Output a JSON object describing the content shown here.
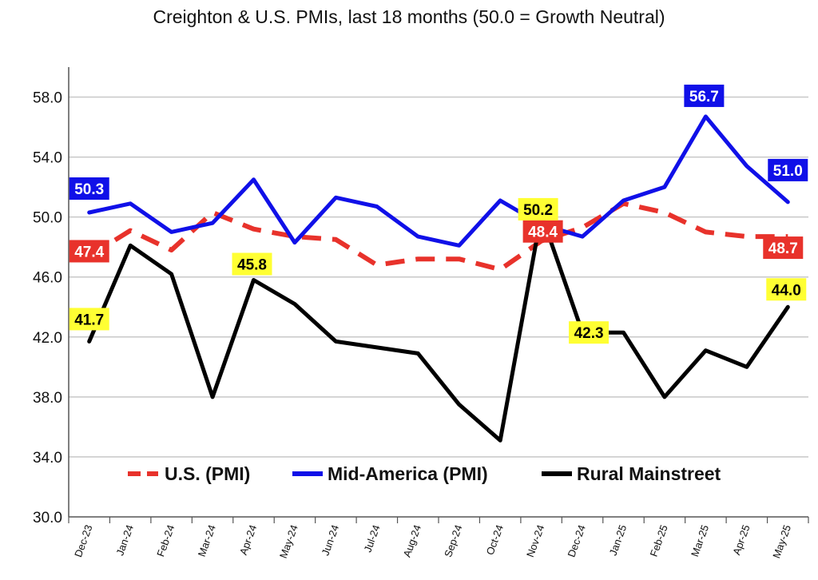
{
  "chart_data": {
    "type": "line",
    "title": "Creighton & U.S. PMIs, last 18 months (50.0 = Growth Neutral)",
    "xlabel": "",
    "ylabel": "",
    "ylim": [
      30,
      60
    ],
    "yticks": [
      "30.0",
      "34.0",
      "38.0",
      "42.0",
      "46.0",
      "50.0",
      "54.0",
      "58.0"
    ],
    "ytick_values": [
      30,
      34,
      38,
      42,
      46,
      50,
      54,
      58
    ],
    "grid": true,
    "legend_position": "bottom-inside",
    "categories": [
      "Dec-23",
      "Jan-24",
      "Feb-24",
      "Mar-24",
      "Apr-24",
      "May-24",
      "Jun-24",
      "Jul-24",
      "Aug-24",
      "Sep-24",
      "Oct-24",
      "Nov-24",
      "Dec-24",
      "Jan-25",
      "Feb-25",
      "Mar-25",
      "Apr-25",
      "May-25"
    ],
    "series": [
      {
        "name": "U.S. (PMI)",
        "color": "#e8322b",
        "style": "dashed",
        "values": [
          47.4,
          49.1,
          47.8,
          50.3,
          49.2,
          48.7,
          48.5,
          46.8,
          47.2,
          47.2,
          46.5,
          48.4,
          49.3,
          50.9,
          50.3,
          49.0,
          48.7,
          48.7
        ],
        "labels": [
          {
            "index": 0,
            "text": "47.4"
          },
          {
            "index": 11,
            "text": "48.4"
          },
          {
            "index": 17,
            "text": "48.7"
          }
        ],
        "label_bg": "#e8322b",
        "label_fg": "#ffffff"
      },
      {
        "name": "Mid-America (PMI)",
        "color": "#1010e8",
        "style": "solid",
        "values": [
          50.3,
          50.9,
          49.0,
          49.6,
          52.5,
          48.3,
          51.3,
          50.7,
          48.7,
          48.1,
          51.1,
          49.5,
          48.7,
          51.1,
          52.0,
          56.7,
          53.4,
          51.0
        ],
        "labels": [
          {
            "index": 0,
            "text": "50.3"
          },
          {
            "index": 15,
            "text": "56.7"
          },
          {
            "index": 17,
            "text": "51.0"
          }
        ],
        "label_bg": "#1010e8",
        "label_fg": "#ffffff"
      },
      {
        "name": "Rural Mainstreet",
        "color": "#000000",
        "style": "solid",
        "values": [
          41.7,
          48.1,
          46.2,
          38.0,
          45.8,
          44.2,
          41.7,
          41.3,
          40.9,
          37.5,
          35.1,
          50.2,
          42.3,
          42.3,
          38.0,
          41.1,
          40.0,
          44.0
        ],
        "labels": [
          {
            "index": 0,
            "text": "41.7"
          },
          {
            "index": 4,
            "text": "45.8"
          },
          {
            "index": 11,
            "text": "50.2"
          },
          {
            "index": 12,
            "text": "42.3"
          },
          {
            "index": 17,
            "text": "44.0"
          }
        ],
        "label_bg": "#ffff33",
        "label_fg": "#000000"
      }
    ]
  }
}
